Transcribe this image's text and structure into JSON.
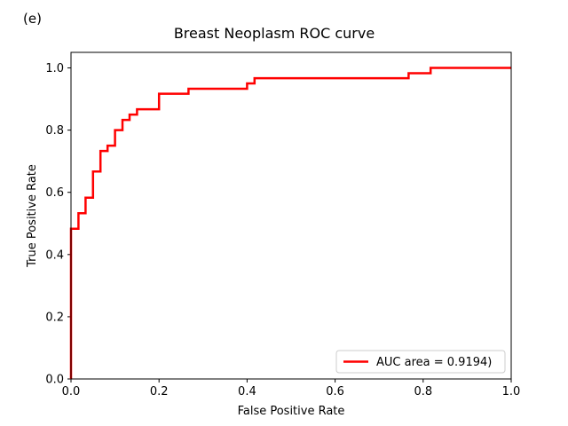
{
  "panel_label": "(e)",
  "chart_data": {
    "type": "line",
    "title": "Breast Neoplasm ROC curve",
    "xlabel": "False Positive Rate",
    "ylabel": "True Positive Rate",
    "xlim": [
      0,
      1
    ],
    "ylim": [
      0,
      1.05
    ],
    "xticks": [
      0.0,
      0.2,
      0.4,
      0.6,
      0.8,
      1.0
    ],
    "xtick_labels": [
      "0.0",
      "0.2",
      "0.4",
      "0.6",
      "0.8",
      "1.0"
    ],
    "yticks": [
      0.0,
      0.2,
      0.4,
      0.6,
      0.8,
      1.0
    ],
    "ytick_labels": [
      "0.0",
      "0.2",
      "0.4",
      "0.6",
      "0.8",
      "1.0"
    ],
    "grid": false,
    "legend_position": "lower-right",
    "series": [
      {
        "name": "AUC area = 0.9194)",
        "color": "#ff0000",
        "x": [
          0,
          0,
          0.017,
          0.017,
          0.033,
          0.033,
          0.05,
          0.05,
          0.067,
          0.067,
          0.083,
          0.083,
          0.1,
          0.1,
          0.117,
          0.117,
          0.133,
          0.133,
          0.15,
          0.15,
          0.2,
          0.2,
          0.267,
          0.267,
          0.4,
          0.4,
          0.417,
          0.417,
          0.767,
          0.767,
          0.817,
          0.817,
          1.0
        ],
        "y": [
          0,
          0.483,
          0.483,
          0.533,
          0.533,
          0.583,
          0.583,
          0.667,
          0.667,
          0.733,
          0.733,
          0.75,
          0.75,
          0.8,
          0.8,
          0.833,
          0.833,
          0.85,
          0.85,
          0.867,
          0.867,
          0.917,
          0.917,
          0.933,
          0.933,
          0.95,
          0.95,
          0.967,
          0.967,
          0.983,
          0.983,
          1.0,
          1.0
        ]
      }
    ]
  }
}
